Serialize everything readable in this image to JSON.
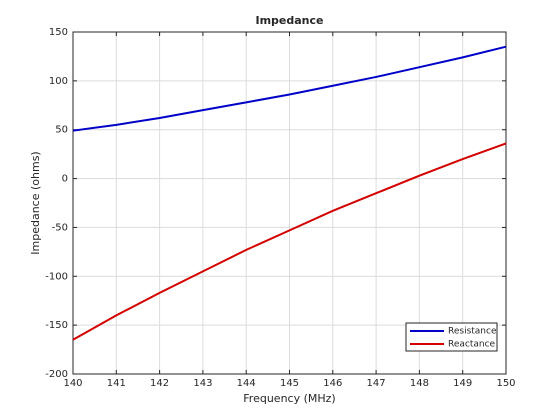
{
  "chart_data": {
    "type": "line",
    "title": "Impedance",
    "xlabel": "Frequency (MHz)",
    "ylabel": "Impedance (ohms)",
    "x": [
      140,
      141,
      142,
      143,
      144,
      145,
      146,
      147,
      148,
      149,
      150
    ],
    "series": [
      {
        "name": "Resistance",
        "color": "#0000c8",
        "values": [
          49,
          55,
          62,
          70,
          78,
          86,
          95,
          104,
          114,
          124,
          135
        ]
      },
      {
        "name": "Reactance",
        "color": "#d40000",
        "values": [
          -165,
          -140,
          -117,
          -95,
          -73,
          -53,
          -33,
          -15,
          3,
          20,
          36
        ]
      }
    ],
    "xlim": [
      140,
      150
    ],
    "xticks": [
      140,
      141,
      142,
      143,
      144,
      145,
      146,
      147,
      148,
      149,
      150
    ],
    "ylim": [
      -200,
      150
    ],
    "yticks": [
      -200,
      -150,
      -100,
      -50,
      0,
      50,
      100,
      150
    ],
    "grid": true,
    "legend": "lower right"
  }
}
